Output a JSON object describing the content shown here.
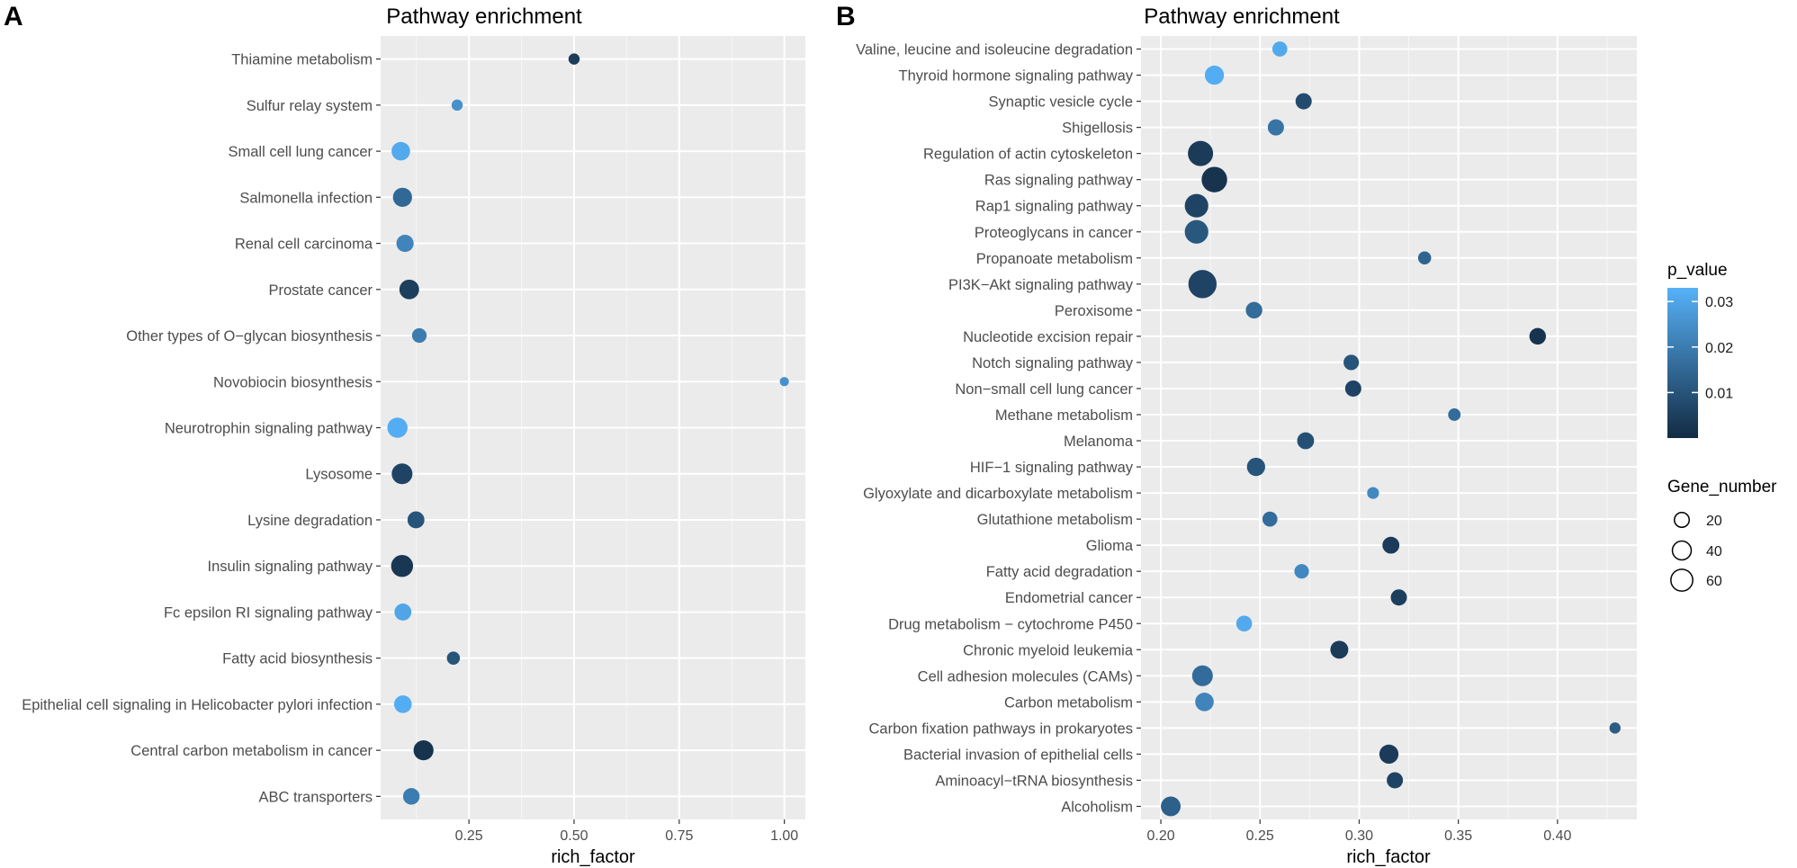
{
  "chart_data": [
    {
      "type": "scatter",
      "panel_label": "A",
      "title": "Pathway enrichment",
      "xlabel": "rich_factor",
      "ylabel": "",
      "xlim": [
        0.04,
        1.05
      ],
      "x_ticks": [
        0.25,
        0.5,
        0.75,
        1.0
      ],
      "x_tick_labels": [
        "0.25",
        "0.50",
        "0.75",
        "1.00"
      ],
      "grid": true,
      "points": [
        {
          "pathway": "Thiamine metabolism",
          "rich_factor": 0.5,
          "p_value": 0.004,
          "gene_number": 3
        },
        {
          "pathway": "Sulfur relay system",
          "rich_factor": 0.222,
          "p_value": 0.025,
          "gene_number": 3
        },
        {
          "pathway": "Small cell lung cancer",
          "rich_factor": 0.088,
          "p_value": 0.031,
          "gene_number": 20
        },
        {
          "pathway": "Salmonella infection",
          "rich_factor": 0.092,
          "p_value": 0.015,
          "gene_number": 22
        },
        {
          "pathway": "Renal cell carcinoma",
          "rich_factor": 0.098,
          "p_value": 0.022,
          "gene_number": 16
        },
        {
          "pathway": "Prostate cancer",
          "rich_factor": 0.108,
          "p_value": 0.005,
          "gene_number": 24
        },
        {
          "pathway": "Other types of O−glycan biosynthesis",
          "rich_factor": 0.132,
          "p_value": 0.02,
          "gene_number": 9
        },
        {
          "pathway": "Novobiocin biosynthesis",
          "rich_factor": 1.0,
          "p_value": 0.025,
          "gene_number": 1
        },
        {
          "pathway": "Neurotrophin signaling pathway",
          "rich_factor": 0.08,
          "p_value": 0.032,
          "gene_number": 26
        },
        {
          "pathway": "Lysosome",
          "rich_factor": 0.091,
          "p_value": 0.006,
          "gene_number": 28
        },
        {
          "pathway": "Lysine degradation",
          "rich_factor": 0.124,
          "p_value": 0.01,
          "gene_number": 15
        },
        {
          "pathway": "Insulin signaling pathway",
          "rich_factor": 0.091,
          "p_value": 0.003,
          "gene_number": 33
        },
        {
          "pathway": "Fc epsilon RI signaling pathway",
          "rich_factor": 0.093,
          "p_value": 0.03,
          "gene_number": 15
        },
        {
          "pathway": "Fatty acid biosynthesis",
          "rich_factor": 0.213,
          "p_value": 0.01,
          "gene_number": 6
        },
        {
          "pathway": "Epithelial cell signaling in Helicobacter pylori infection",
          "rich_factor": 0.093,
          "p_value": 0.032,
          "gene_number": 17
        },
        {
          "pathway": "Central carbon metabolism in cancer",
          "rich_factor": 0.142,
          "p_value": 0.002,
          "gene_number": 25
        },
        {
          "pathway": "ABC transporters",
          "rich_factor": 0.113,
          "p_value": 0.02,
          "gene_number": 14
        }
      ]
    },
    {
      "type": "scatter",
      "panel_label": "B",
      "title": "Pathway enrichment",
      "xlabel": "rich_factor",
      "ylabel": "",
      "xlim": [
        0.19,
        0.44
      ],
      "x_ticks": [
        0.2,
        0.25,
        0.3,
        0.35,
        0.4
      ],
      "x_tick_labels": [
        "0.20",
        "0.25",
        "0.30",
        "0.35",
        "0.40"
      ],
      "grid": true,
      "points": [
        {
          "pathway": "Valine, leucine and isoleucine degradation",
          "rich_factor": 0.26,
          "p_value": 0.031,
          "gene_number": 10
        },
        {
          "pathway": "Thyroid hormone signaling pathway",
          "rich_factor": 0.227,
          "p_value": 0.032,
          "gene_number": 22
        },
        {
          "pathway": "Synaptic vesicle cycle",
          "rich_factor": 0.272,
          "p_value": 0.008,
          "gene_number": 13
        },
        {
          "pathway": "Shigellosis",
          "rich_factor": 0.258,
          "p_value": 0.018,
          "gene_number": 13
        },
        {
          "pathway": "Regulation of actin cytoskeleton",
          "rich_factor": 0.22,
          "p_value": 0.004,
          "gene_number": 48
        },
        {
          "pathway": "Ras signaling pathway",
          "rich_factor": 0.227,
          "p_value": 0.002,
          "gene_number": 50
        },
        {
          "pathway": "Rap1 signaling pathway",
          "rich_factor": 0.218,
          "p_value": 0.006,
          "gene_number": 40
        },
        {
          "pathway": "Proteoglycans in cancer",
          "rich_factor": 0.218,
          "p_value": 0.011,
          "gene_number": 40
        },
        {
          "pathway": "Propanoate metabolism",
          "rich_factor": 0.333,
          "p_value": 0.014,
          "gene_number": 6
        },
        {
          "pathway": "PI3K−Akt signaling pathway",
          "rich_factor": 0.221,
          "p_value": 0.006,
          "gene_number": 65
        },
        {
          "pathway": "Peroxisome",
          "rich_factor": 0.247,
          "p_value": 0.016,
          "gene_number": 14
        },
        {
          "pathway": "Nucleotide excision repair",
          "rich_factor": 0.39,
          "p_value": 0.002,
          "gene_number": 14
        },
        {
          "pathway": "Notch signaling pathway",
          "rich_factor": 0.296,
          "p_value": 0.01,
          "gene_number": 11
        },
        {
          "pathway": "Non−small cell lung cancer",
          "rich_factor": 0.297,
          "p_value": 0.006,
          "gene_number": 13
        },
        {
          "pathway": "Methane metabolism",
          "rich_factor": 0.348,
          "p_value": 0.016,
          "gene_number": 5
        },
        {
          "pathway": "Melanoma",
          "rich_factor": 0.273,
          "p_value": 0.009,
          "gene_number": 15
        },
        {
          "pathway": "HIF−1 signaling pathway",
          "rich_factor": 0.248,
          "p_value": 0.01,
          "gene_number": 19
        },
        {
          "pathway": "Glyoxylate and dicarboxylate metabolism",
          "rich_factor": 0.307,
          "p_value": 0.023,
          "gene_number": 4
        },
        {
          "pathway": "Glutathione metabolism",
          "rich_factor": 0.255,
          "p_value": 0.016,
          "gene_number": 10
        },
        {
          "pathway": "Glioma",
          "rich_factor": 0.316,
          "p_value": 0.004,
          "gene_number": 15
        },
        {
          "pathway": "Fatty acid degradation",
          "rich_factor": 0.271,
          "p_value": 0.023,
          "gene_number": 9
        },
        {
          "pathway": "Endometrial cancer",
          "rich_factor": 0.32,
          "p_value": 0.005,
          "gene_number": 13
        },
        {
          "pathway": "Drug metabolism − cytochrome P450",
          "rich_factor": 0.242,
          "p_value": 0.031,
          "gene_number": 12
        },
        {
          "pathway": "Chronic myeloid leukemia",
          "rich_factor": 0.29,
          "p_value": 0.004,
          "gene_number": 18
        },
        {
          "pathway": "Cell adhesion molecules (CAMs)",
          "rich_factor": 0.221,
          "p_value": 0.016,
          "gene_number": 28
        },
        {
          "pathway": "Carbon metabolism",
          "rich_factor": 0.222,
          "p_value": 0.022,
          "gene_number": 20
        },
        {
          "pathway": "Carbon fixation pathways in prokaryotes",
          "rich_factor": 0.429,
          "p_value": 0.012,
          "gene_number": 3
        },
        {
          "pathway": "Bacterial invasion of epithelial cells",
          "rich_factor": 0.315,
          "p_value": 0.004,
          "gene_number": 22
        },
        {
          "pathway": "Aminoacyl−tRNA biosynthesis",
          "rich_factor": 0.318,
          "p_value": 0.006,
          "gene_number": 13
        },
        {
          "pathway": "Alcoholism",
          "rich_factor": 0.205,
          "p_value": 0.013,
          "gene_number": 24
        }
      ]
    }
  ],
  "legend": {
    "color_title": "p_value",
    "color_ticks": [
      0.03,
      0.02,
      0.01
    ],
    "color_tick_labels": [
      "0.03",
      "0.02",
      "0.01"
    ],
    "color_range": [
      0.0,
      0.033
    ],
    "color_low": "#132B43",
    "color_high": "#56B1F7",
    "size_title": "Gene_number",
    "size_values": [
      20,
      40,
      60
    ],
    "size_labels": [
      "20",
      "40",
      "60"
    ]
  },
  "colors": {
    "panel_bg": "#EBEBEB",
    "grid": "#FFFFFF"
  }
}
